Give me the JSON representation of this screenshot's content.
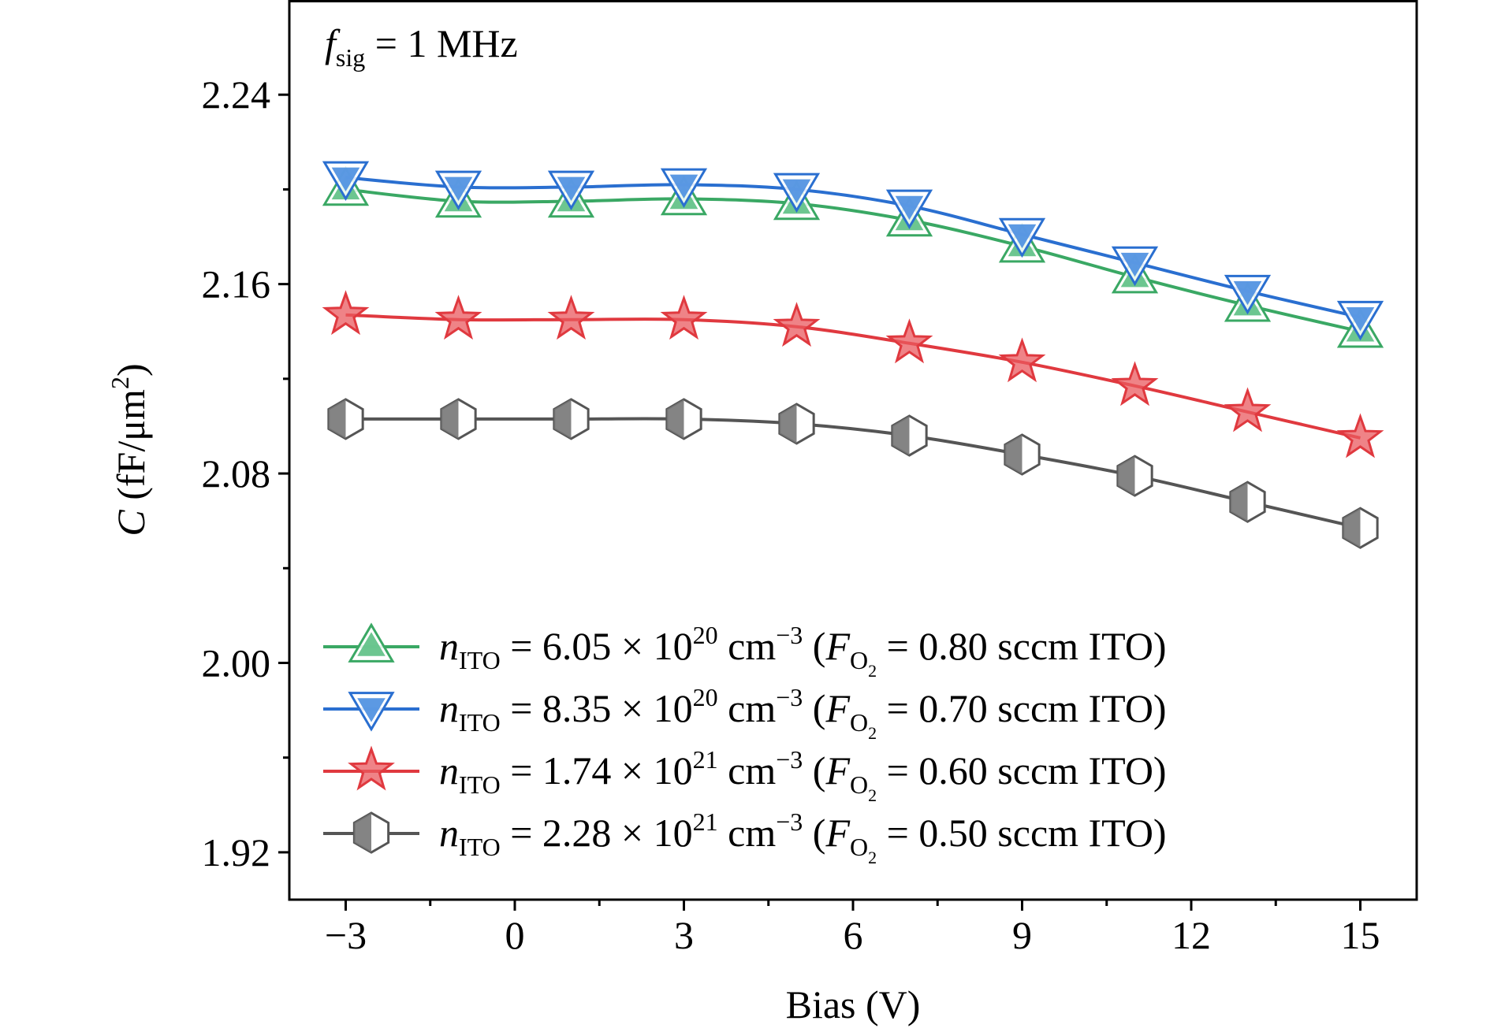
{
  "chart_data": {
    "type": "line",
    "annotation": {
      "symbol": "f",
      "subscript": "sig",
      "rest": " = 1 MHz"
    },
    "xlabel": "Bias (V)",
    "ylabel": {
      "symbol": "C",
      "unit_prefix": " (fF/μm",
      "unit_sup": "2",
      "unit_suffix": ")"
    },
    "xlim": [
      -4.0,
      16.0
    ],
    "ylim": [
      1.9,
      2.28
    ],
    "xticks": [
      -3,
      0,
      3,
      6,
      9,
      12,
      15
    ],
    "xtick_labels": [
      "−3",
      "0",
      "3",
      "6",
      "9",
      "12",
      "15"
    ],
    "xminor": [
      -1.5,
      1.5,
      4.5,
      7.5,
      10.5,
      13.5
    ],
    "yticks": [
      1.92,
      2.0,
      2.08,
      2.16,
      2.24
    ],
    "ytick_labels": [
      "1.92",
      "2.00",
      "2.08",
      "2.16",
      "2.24"
    ],
    "yminor": [
      1.96,
      2.04,
      2.12,
      2.2
    ],
    "grid": false,
    "legend_position": "lower-left",
    "x": [
      -3,
      -1,
      1,
      3,
      5,
      7,
      9,
      11,
      13,
      15
    ],
    "series": [
      {
        "marker": "triangle-up",
        "color": "#3aa864",
        "marker_fill": "#5cc084",
        "legend": {
          "n": "n",
          "n_sub": "ITO",
          "value": " = 6.05 × 10",
          "exp": "20",
          "unit": " cm",
          "unit_exp": "−3",
          "paren_open": " (",
          "f": "F",
          "f_sub": "O",
          "f_subsub": "2",
          "tail": " = 0.80 sccm ITO)"
        },
        "values": [
          2.2,
          2.195,
          2.195,
          2.196,
          2.194,
          2.187,
          2.176,
          2.163,
          2.151,
          2.14
        ]
      },
      {
        "marker": "triangle-down",
        "color": "#2a6fd0",
        "marker_fill": "#4a8ee0",
        "legend": {
          "n": "n",
          "n_sub": "ITO",
          "value": " = 8.35 × 10",
          "exp": "20",
          "unit": " cm",
          "unit_exp": "−3",
          "paren_open": " (",
          "f": "F",
          "f_sub": "O",
          "f_subsub": "2",
          "tail": " = 0.70 sccm ITO)"
        },
        "values": [
          2.205,
          2.201,
          2.201,
          2.202,
          2.2,
          2.193,
          2.181,
          2.169,
          2.157,
          2.146
        ]
      },
      {
        "marker": "star",
        "color": "#e0393f",
        "marker_fill": "#ea5a5f",
        "legend": {
          "n": "n",
          "n_sub": "ITO",
          "value": " = 1.74 × 10",
          "exp": "21",
          "unit": " cm",
          "unit_exp": "−3",
          "paren_open": " (",
          "f": "F",
          "f_sub": "O",
          "f_subsub": "2",
          "tail": " = 0.60 sccm ITO)"
        },
        "values": [
          2.147,
          2.145,
          2.145,
          2.145,
          2.142,
          2.135,
          2.127,
          2.117,
          2.106,
          2.095
        ]
      },
      {
        "marker": "hexagon",
        "color": "#555555",
        "marker_fill": "#777777",
        "legend": {
          "n": "n",
          "n_sub": "ITO",
          "value": " = 2.28 × 10",
          "exp": "21",
          "unit": " cm",
          "unit_exp": "−3",
          "paren_open": " (",
          "f": "F",
          "f_sub": "O",
          "f_subsub": "2",
          "tail": " = 0.50 sccm ITO)"
        },
        "values": [
          2.103,
          2.103,
          2.103,
          2.103,
          2.101,
          2.096,
          2.088,
          2.079,
          2.068,
          2.057
        ]
      }
    ]
  }
}
